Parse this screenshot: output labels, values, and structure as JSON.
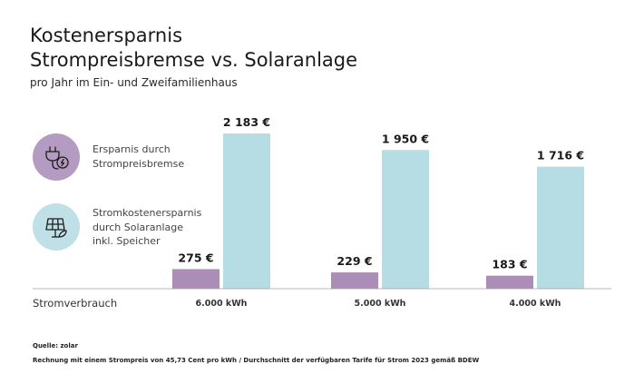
{
  "title_line1": "Kostenersparnis",
  "title_line2": "Strompreisbremse vs. Solaranlage",
  "subtitle": "pro Jahr im Ein- und Zweifamilienhaus",
  "legend": [
    {
      "label": "Ersparnis durch\nStrompreisbremse",
      "color": "#ab8db8",
      "circle_color": "#b49bc1",
      "icon": "power-plug-icon"
    },
    {
      "label": "Stromkostenersparnis\ndurch Solaranlage\ninkl. Speicher",
      "color": "#b5dde3",
      "circle_color": "#bfe0e6",
      "icon": "solar-panel-icon"
    }
  ],
  "x_axis_label": "Stromverbrauch",
  "source": "Quelle: zolar",
  "note": "Rechnung mit einem Strompreis von 45,73 Cent pro kWh / Durchschnitt der verfügbaren Tarife für Strom 2023 gemäß BDEW",
  "chart_data": {
    "type": "bar",
    "categories": [
      "6.000 kWh",
      "5.000 kWh",
      "4.000 kWh"
    ],
    "series": [
      {
        "name": "Ersparnis durch Strompreisbremse",
        "values": [
          275,
          229,
          183
        ],
        "labels": [
          "275 €",
          "229 €",
          "183 €"
        ],
        "color": "#ab8db8"
      },
      {
        "name": "Stromkostenersparnis durch Solaranlage inkl. Speicher",
        "values": [
          2183,
          1950,
          1716
        ],
        "labels": [
          "2 183 €",
          "1 950 €",
          "1 716 €"
        ],
        "color": "#b5dde3"
      }
    ],
    "xlabel": "Stromverbrauch",
    "ylabel": "",
    "ylim": [
      0,
      2183
    ],
    "grid": false
  }
}
